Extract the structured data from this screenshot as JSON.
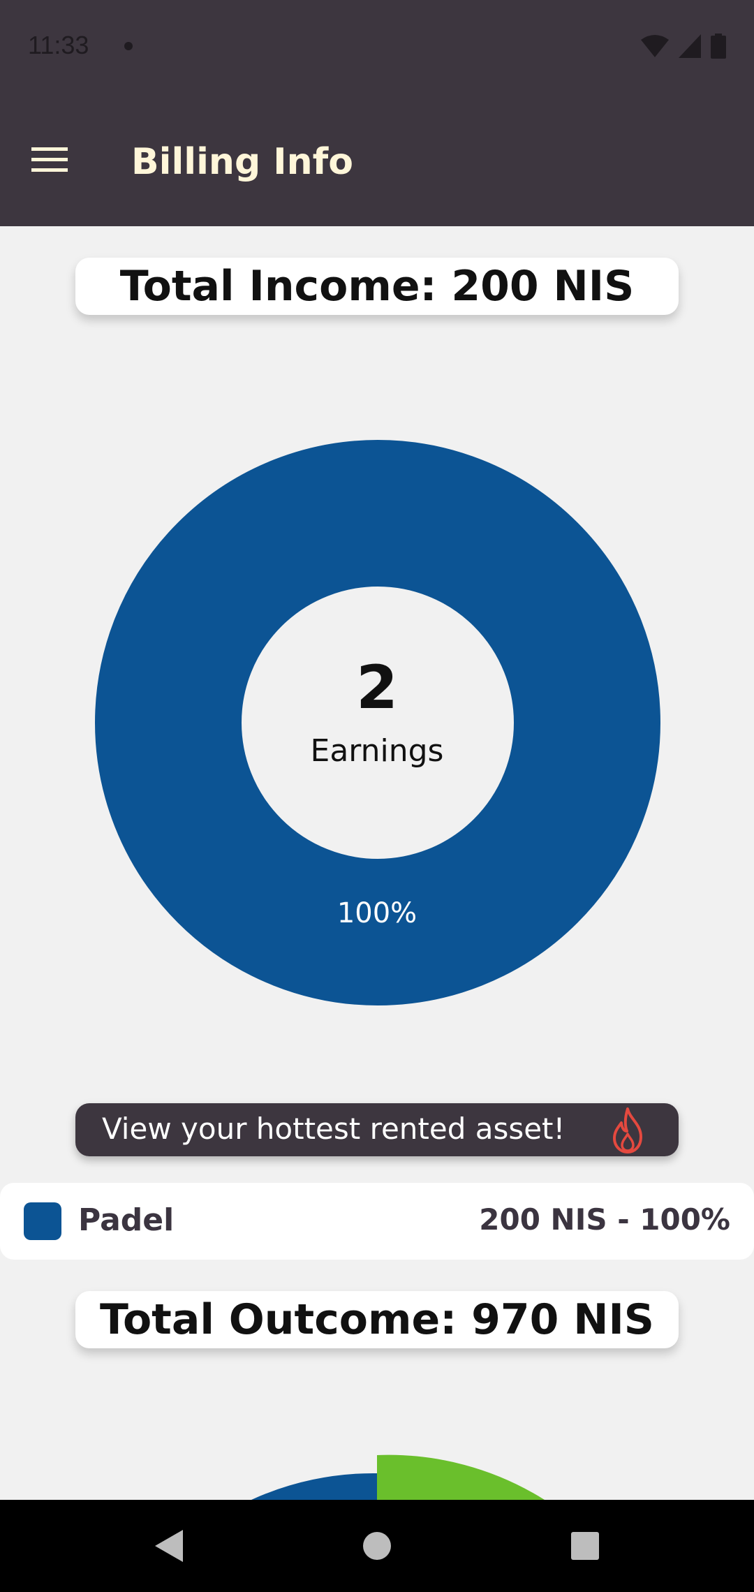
{
  "status_bar": {
    "time": "11:33",
    "icons": [
      "wifi-icon",
      "cell-signal-icon",
      "battery-icon"
    ]
  },
  "app_bar": {
    "title": "Billing Info",
    "menu_icon": "hamburger-menu-icon"
  },
  "income": {
    "total_label": "Total Income: 200 NIS",
    "center_value": "2",
    "center_label": "Earnings",
    "slice_label": "100%"
  },
  "chart_data": [
    {
      "type": "pie",
      "subtype": "donut",
      "categories": [
        "Padel"
      ],
      "values": [
        200
      ],
      "percentages": [
        100
      ],
      "colors": [
        "#0c5494"
      ]
    },
    {
      "type": "pie",
      "subtype": "donut",
      "note_partial": "partially visible, cut off at bottom",
      "colors": [
        "#6abf2c",
        "#0c5494"
      ]
    }
  ],
  "hottest_banner": {
    "text": "View your hottest rented asset!",
    "icon": "fire-icon"
  },
  "legend": [
    {
      "name": "Padel",
      "value": "200 NIS - 100%",
      "color": "#0c5494"
    }
  ],
  "outcome": {
    "total_label": "Total Outcome: 970 NIS"
  },
  "nav": {
    "icons": [
      "back-icon",
      "home-icon",
      "recents-icon"
    ]
  },
  "colors": {
    "bar": "#3d363f",
    "title": "#fff6d9",
    "accent_blue": "#0c5494",
    "accent_green": "#6abf2c",
    "fire": "#e5493f"
  }
}
